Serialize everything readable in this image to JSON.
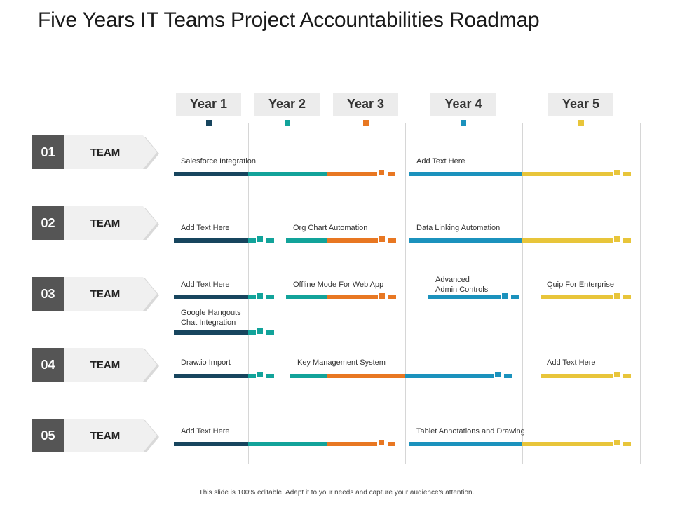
{
  "title": "Five Years IT Teams Project Accountabilities Roadmap",
  "footer": "This slide is 100% editable. Adapt it to your needs and capture your audience's attention.",
  "colors": {
    "y1": "#17455e",
    "y2": "#12a39a",
    "y3": "#e87722",
    "y4": "#1b92bd",
    "y5": "#e8c53a",
    "team_number_bg": "#555555",
    "team_label_bg": "#f0f0f0"
  },
  "years": [
    {
      "label": "Year 1",
      "color": "y1"
    },
    {
      "label": "Year 2",
      "color": "y2"
    },
    {
      "label": "Year 3",
      "color": "y3"
    },
    {
      "label": "Year 4",
      "color": "y4"
    },
    {
      "label": "Year 5",
      "color": "y5"
    }
  ],
  "teams": [
    {
      "number": "01",
      "label": "TEAM"
    },
    {
      "number": "02",
      "label": "TEAM"
    },
    {
      "number": "03",
      "label": "TEAM"
    },
    {
      "number": "04",
      "label": "TEAM"
    },
    {
      "number": "05",
      "label": "TEAM"
    }
  ],
  "tasks": [
    {
      "team": "01",
      "label": "Salesforce Integration"
    },
    {
      "team": "01",
      "label": "Add Text Here"
    },
    {
      "team": "02",
      "label": "Add Text Here"
    },
    {
      "team": "02",
      "label": "Org Chart Automation"
    },
    {
      "team": "02",
      "label": "Data Linking Automation"
    },
    {
      "team": "03",
      "label": "Add Text Here"
    },
    {
      "team": "03",
      "label": "Offline Mode For Web App"
    },
    {
      "team": "03",
      "label": "Advanced\nAdmin Controls"
    },
    {
      "team": "03",
      "label": "Quip For Enterprise"
    },
    {
      "team": "03",
      "label": "Google Hangouts\nChat Integration"
    },
    {
      "team": "04",
      "label": "Draw.io Import"
    },
    {
      "team": "04",
      "label": "Key Management System"
    },
    {
      "team": "04",
      "label": "Add Text Here"
    },
    {
      "team": "05",
      "label": "Add Text Here"
    },
    {
      "team": "05",
      "label": "Tablet Annotations and Drawing"
    }
  ]
}
